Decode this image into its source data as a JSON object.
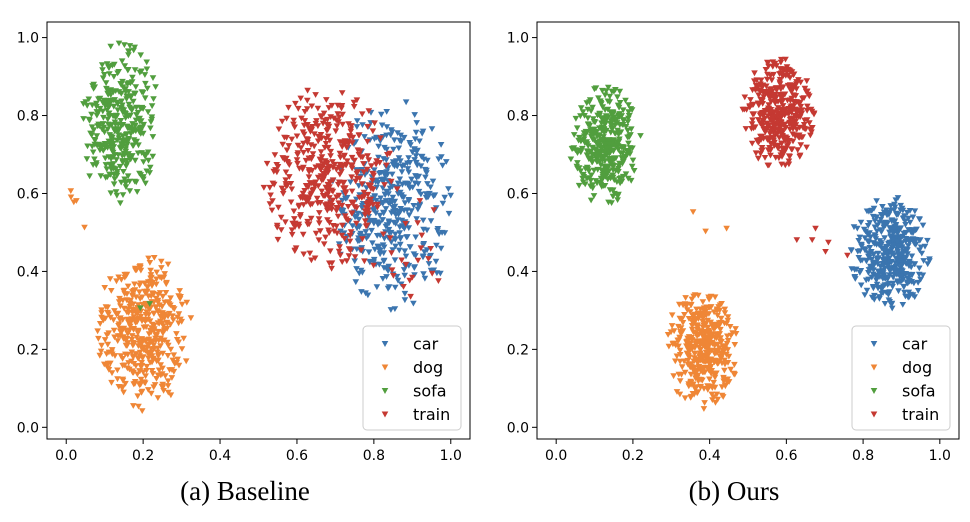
{
  "chart_data": [
    {
      "type": "scatter",
      "caption": "(a) Baseline",
      "xlim": [
        -0.05,
        1.05
      ],
      "ylim": [
        -0.03,
        1.04
      ],
      "xticks": [
        "0.0",
        "0.2",
        "0.4",
        "0.6",
        "0.8",
        "1.0"
      ],
      "yticks": [
        "0.0",
        "0.2",
        "0.4",
        "0.6",
        "0.8",
        "1.0"
      ],
      "grid": false,
      "legend_position": "bottom-right",
      "marker": "triangle-down",
      "series": [
        {
          "name": "car",
          "color": "#3b75af",
          "clusters": [
            {
              "cx": 0.85,
              "cy": 0.57,
              "sx": 0.08,
              "sy": 0.13,
              "n": 420
            }
          ]
        },
        {
          "name": "dog",
          "color": "#ef8636",
          "clusters": [
            {
              "cx": 0.2,
              "cy": 0.25,
              "sx": 0.06,
              "sy": 0.1,
              "n": 430
            },
            {
              "cx": 0.04,
              "cy": 0.57,
              "sx": 0.02,
              "sy": 0.03,
              "n": 5
            }
          ]
        },
        {
          "name": "sofa",
          "color": "#519e3e",
          "clusters": [
            {
              "cx": 0.14,
              "cy": 0.78,
              "sx": 0.05,
              "sy": 0.1,
              "n": 360
            },
            {
              "cx": 0.2,
              "cy": 0.31,
              "sx": 0.01,
              "sy": 0.01,
              "n": 2
            }
          ]
        },
        {
          "name": "train",
          "color": "#c53932",
          "clusters": [
            {
              "cx": 0.68,
              "cy": 0.64,
              "sx": 0.08,
              "sy": 0.12,
              "n": 430
            },
            {
              "cx": 0.88,
              "cy": 0.45,
              "sx": 0.06,
              "sy": 0.08,
              "n": 25
            }
          ]
        }
      ]
    },
    {
      "type": "scatter",
      "caption": "(b) Ours",
      "xlim": [
        -0.05,
        1.05
      ],
      "ylim": [
        -0.03,
        1.04
      ],
      "xticks": [
        "0.0",
        "0.2",
        "0.4",
        "0.6",
        "0.8",
        "1.0"
      ],
      "yticks": [
        "0.0",
        "0.2",
        "0.4",
        "0.6",
        "0.8",
        "1.0"
      ],
      "grid": false,
      "legend_position": "bottom-right",
      "marker": "triangle-down",
      "series": [
        {
          "name": "car",
          "color": "#3b75af",
          "clusters": [
            {
              "cx": 0.87,
              "cy": 0.45,
              "sx": 0.05,
              "sy": 0.07,
              "n": 420
            }
          ]
        },
        {
          "name": "dog",
          "color": "#ef8636",
          "clusters": [
            {
              "cx": 0.38,
              "cy": 0.2,
              "sx": 0.045,
              "sy": 0.075,
              "n": 400
            },
            {
              "cx": 0.4,
              "cy": 0.55,
              "sx": 0.08,
              "sy": 0.05,
              "n": 3
            }
          ]
        },
        {
          "name": "sofa",
          "color": "#519e3e",
          "clusters": [
            {
              "cx": 0.13,
              "cy": 0.72,
              "sx": 0.045,
              "sy": 0.075,
              "n": 380
            }
          ]
        },
        {
          "name": "train",
          "color": "#c53932",
          "clusters": [
            {
              "cx": 0.58,
              "cy": 0.81,
              "sx": 0.045,
              "sy": 0.07,
              "n": 400
            },
            {
              "cx": 0.7,
              "cy": 0.49,
              "sx": 0.05,
              "sy": 0.03,
              "n": 6
            }
          ]
        }
      ],
      "legend": [
        "car",
        "dog",
        "sofa",
        "train"
      ]
    }
  ]
}
